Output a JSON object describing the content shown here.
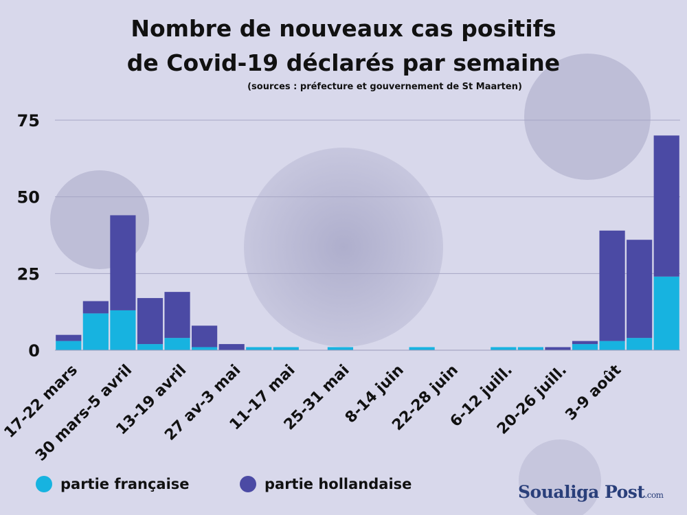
{
  "title_line1": "Nombre de nouveaux cas positifs",
  "title_line2": "de Covid-19  déclarés par semaine",
  "subtitle": "(sources : préfecture et gouvernement de St Maarten)",
  "brand": {
    "name": "Soualiga Post",
    "domain": ".com"
  },
  "legend": [
    {
      "label": "partie française",
      "color": "#17b3e0"
    },
    {
      "label": "partie hollandaise",
      "color": "#4b4aa4"
    }
  ],
  "chart_data": {
    "type": "bar",
    "stacked": true,
    "ylim": [
      0,
      75
    ],
    "yticks": [
      0,
      25,
      50,
      75
    ],
    "grid": true,
    "x_tick_labels": [
      "17-22 mars",
      "30 mars-5 avril",
      "13-19 avril",
      "27 av-3 mai",
      "11-17 mai",
      "25-31 mai",
      "8-14 juin",
      "22-28 juin",
      "6-12 juill.",
      "20-26 juill.",
      "3-9 août"
    ],
    "series": [
      {
        "name": "partie française",
        "color": "#17b3e0",
        "values": [
          3,
          12,
          13,
          2,
          4,
          1,
          0,
          1,
          1,
          0,
          1,
          0,
          0,
          1,
          0,
          0,
          1,
          1,
          0,
          2,
          3,
          4,
          24
        ]
      },
      {
        "name": "partie hollandaise",
        "color": "#4b4aa4",
        "values": [
          2,
          4,
          31,
          15,
          15,
          7,
          2,
          0,
          0,
          0,
          0,
          0,
          0,
          0,
          0,
          0,
          0,
          0,
          1,
          1,
          36,
          32,
          46
        ]
      }
    ]
  }
}
